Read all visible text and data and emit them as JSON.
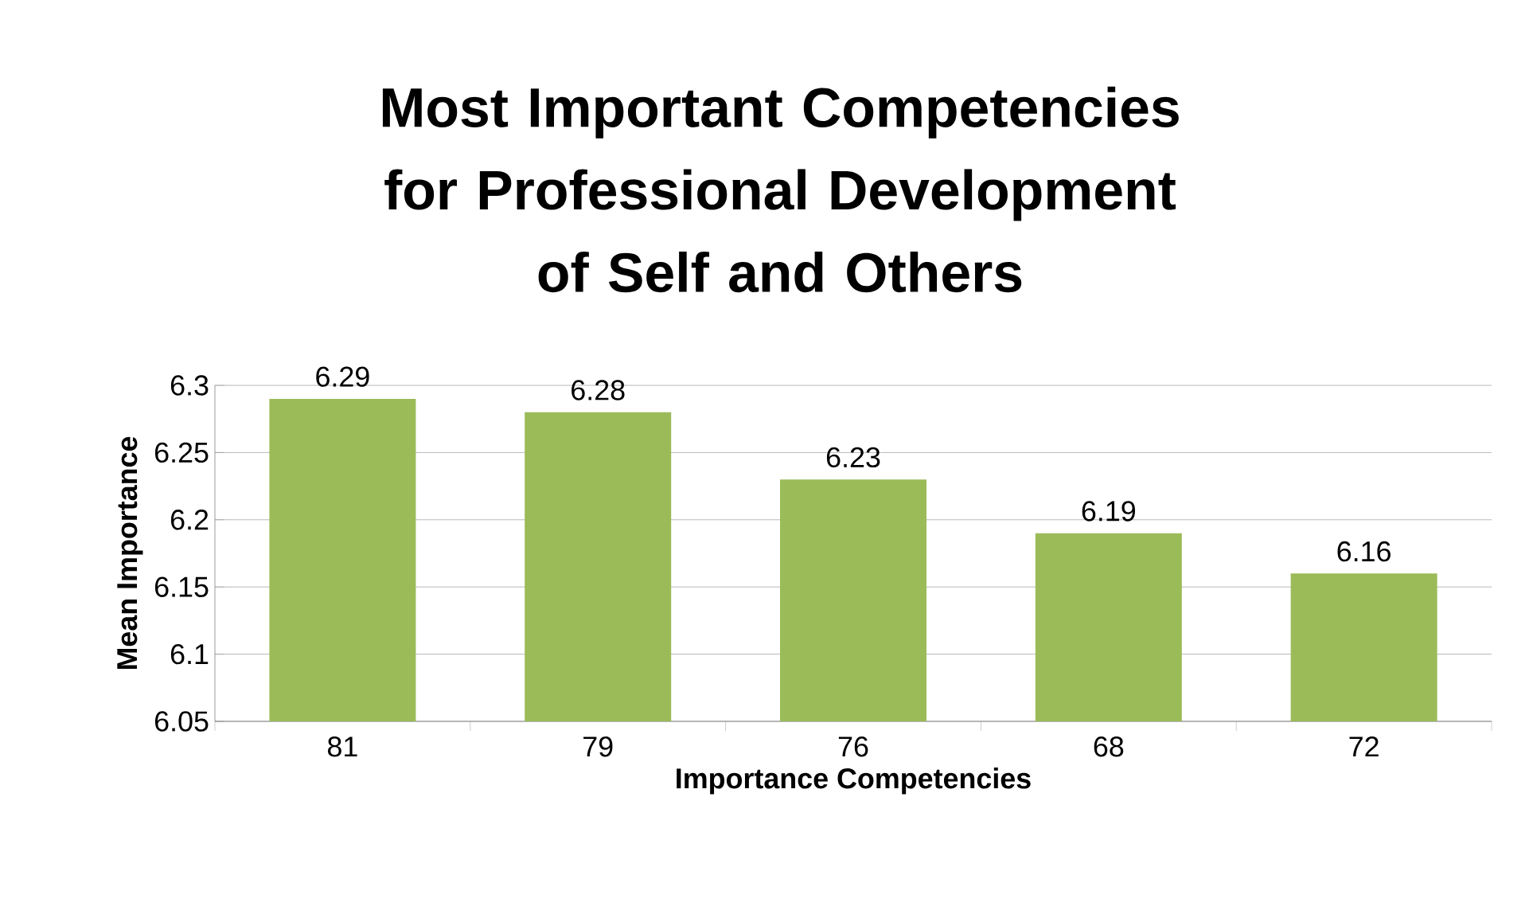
{
  "chart_data": {
    "type": "bar",
    "title": "Most Important Competencies for Professional Development of Self and Others",
    "xlabel": "Importance Competencies",
    "ylabel": "Mean Importance",
    "categories": [
      "81",
      "79",
      "76",
      "68",
      "72"
    ],
    "values": [
      6.29,
      6.28,
      6.23,
      6.19,
      6.16
    ],
    "color": "#9bbb59",
    "ylim": [
      6.05,
      6.3
    ],
    "yticks": [
      6.05,
      6.1,
      6.15,
      6.2,
      6.25,
      6.3
    ],
    "grid": "y",
    "data_labels": true
  }
}
